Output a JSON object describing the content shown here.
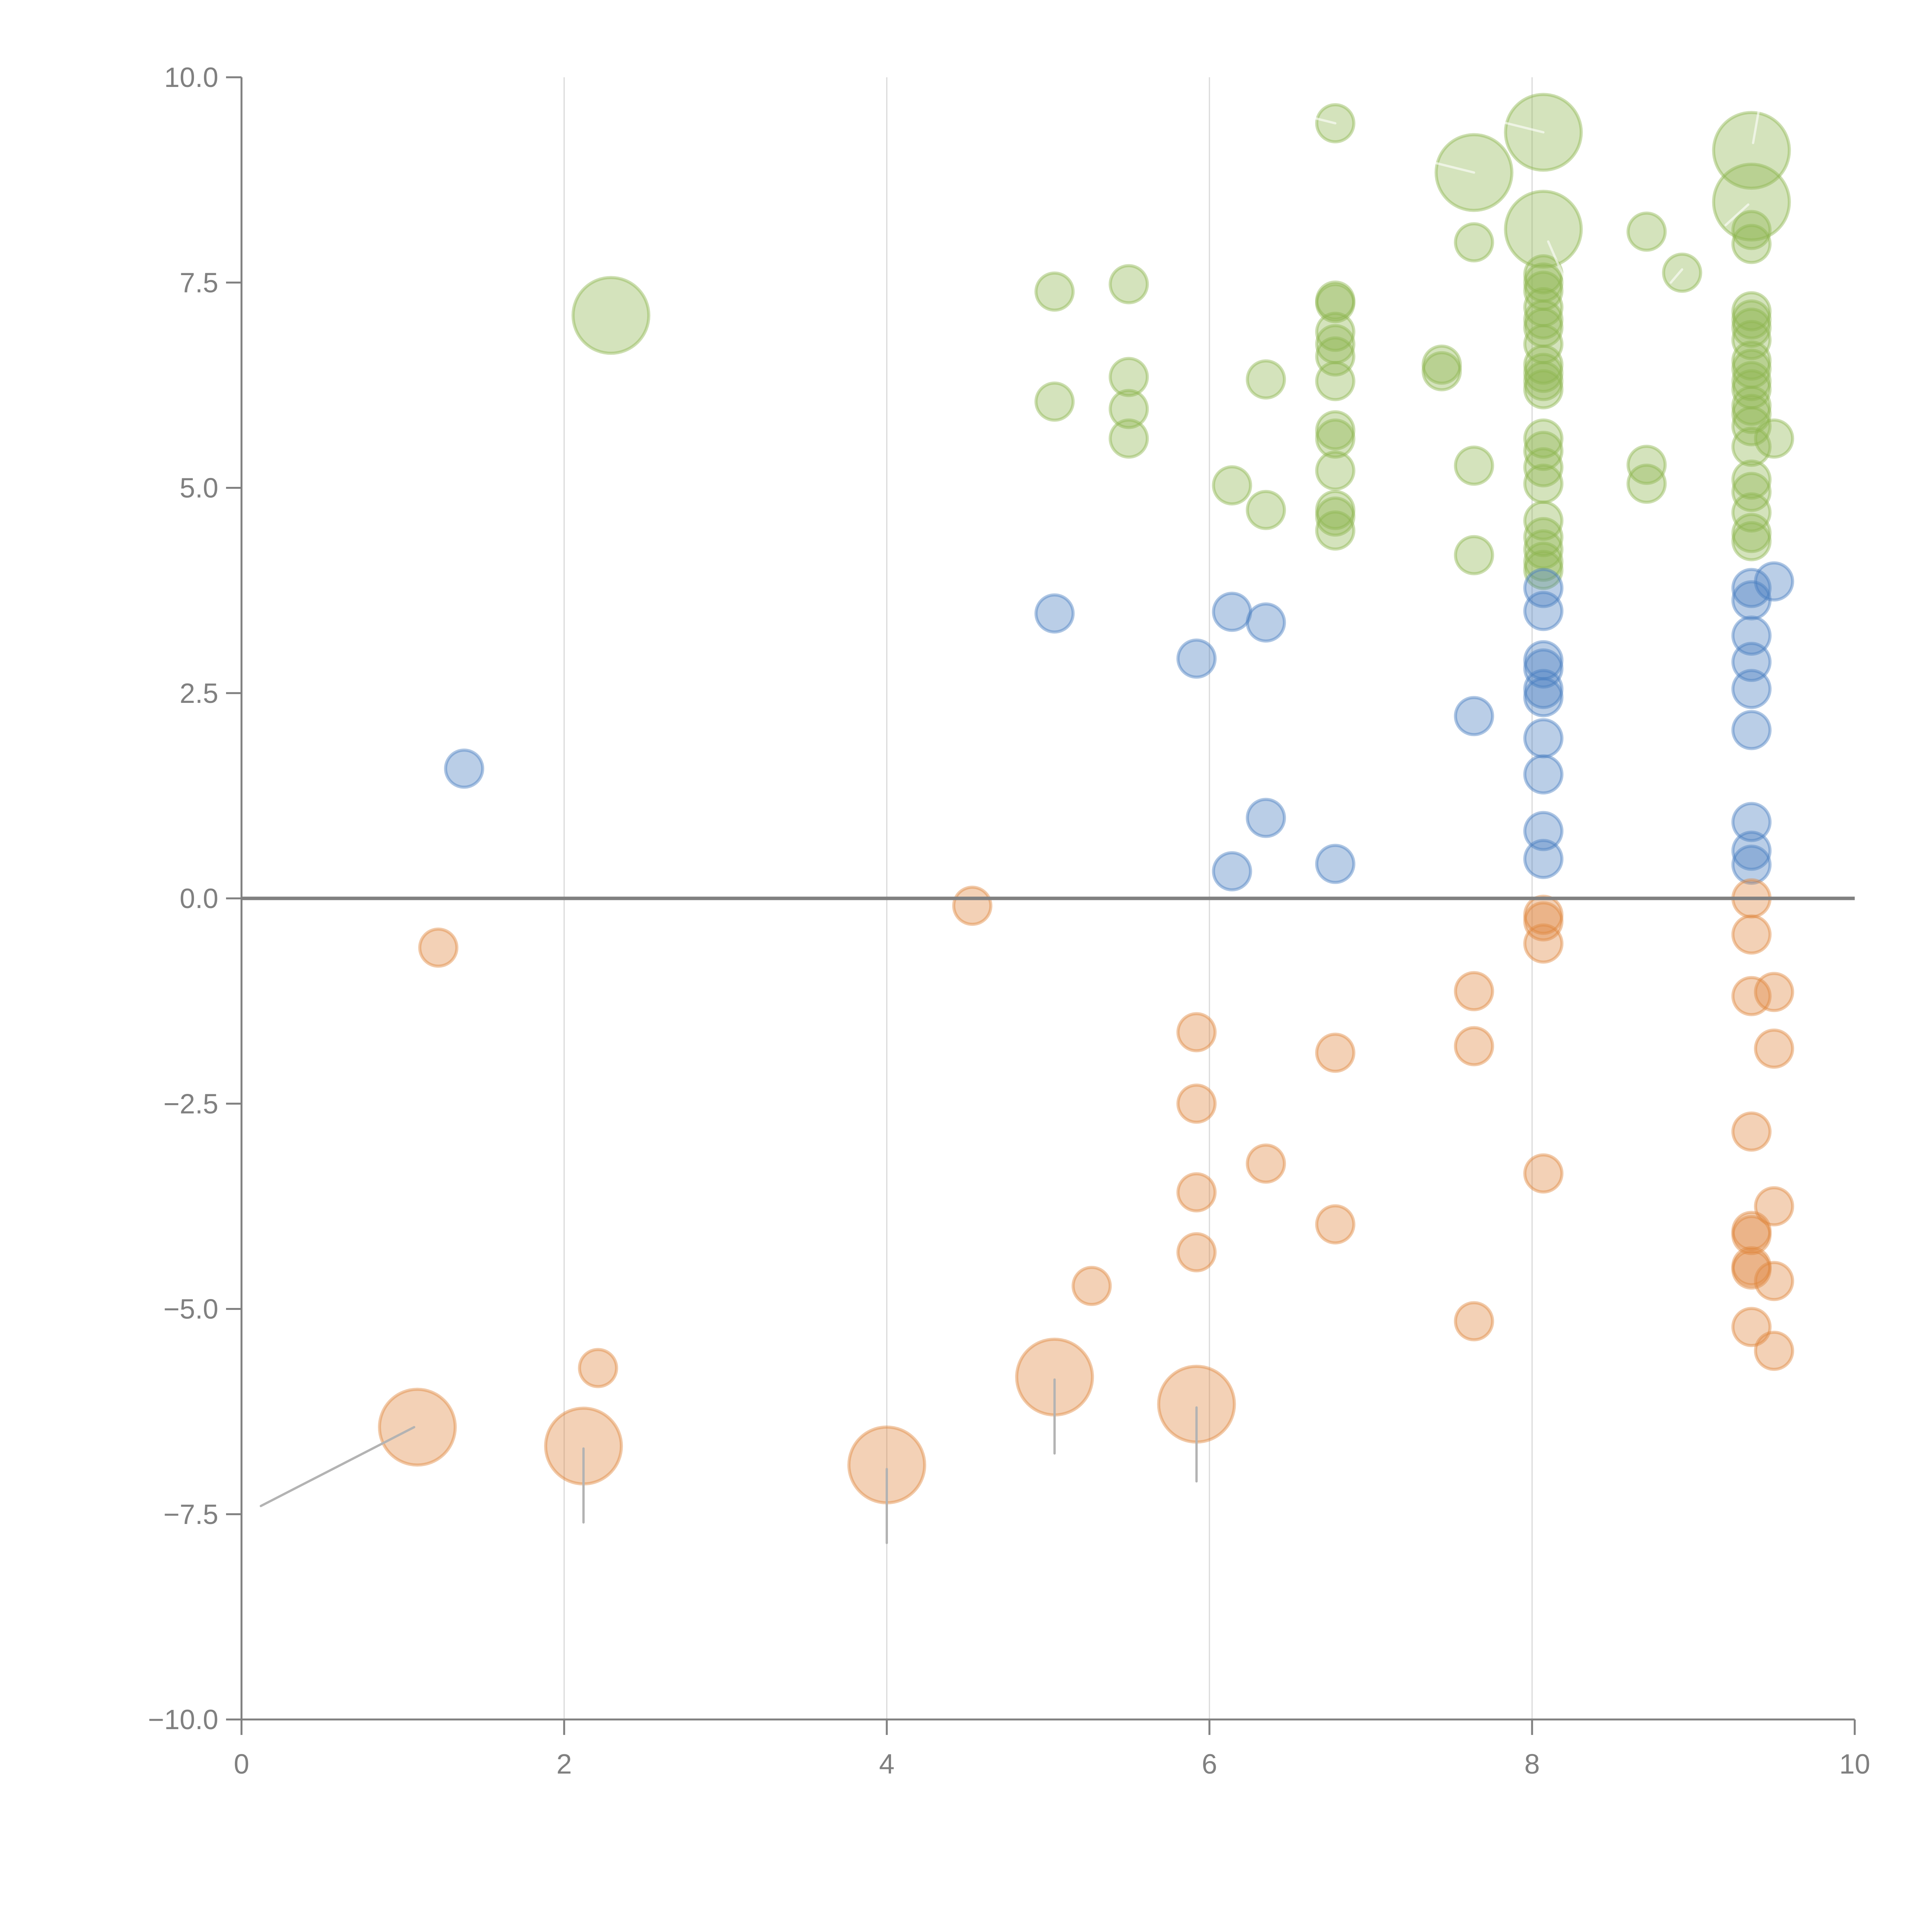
{
  "chart_data": {
    "type": "scatter",
    "subtype": "bubble",
    "title": "",
    "xlabel": "",
    "ylabel": "",
    "xlim": [
      0,
      10
    ],
    "ylim": [
      -10,
      10
    ],
    "x_ticks": [
      "0",
      "2",
      "4",
      "6",
      "8",
      "10"
    ],
    "y_ticks": [
      "10.0",
      "7.5",
      "5.0",
      "2.5",
      "0.0",
      "−2.5",
      "−5.0",
      "−7.5",
      "−10.0"
    ],
    "grid": "vertical",
    "legend": "none",
    "colors": {
      "green": "#8fb54f",
      "blue": "#4a7fc1",
      "orange": "#e0873f"
    },
    "series": [
      {
        "name": "green",
        "color": "#8fb54f",
        "points": [
          {
            "x": 2.29,
            "y": 7.1,
            "size": 2
          },
          {
            "x": 5.04,
            "y": 7.39,
            "size": 1
          },
          {
            "x": 5.04,
            "y": 6.05,
            "size": 1
          },
          {
            "x": 5.5,
            "y": 7.48,
            "size": 1
          },
          {
            "x": 5.5,
            "y": 6.35,
            "size": 1
          },
          {
            "x": 5.5,
            "y": 5.96,
            "size": 1
          },
          {
            "x": 5.5,
            "y": 5.6,
            "size": 1
          },
          {
            "x": 6.14,
            "y": 5.03,
            "size": 1
          },
          {
            "x": 6.35,
            "y": 6.32,
            "size": 1
          },
          {
            "x": 6.35,
            "y": 4.73,
            "size": 1
          },
          {
            "x": 6.78,
            "y": 9.44,
            "size": 1
          },
          {
            "x": 6.78,
            "y": 7.28,
            "size": 1
          },
          {
            "x": 6.78,
            "y": 7.25,
            "size": 1
          },
          {
            "x": 6.78,
            "y": 6.9,
            "size": 1
          },
          {
            "x": 6.78,
            "y": 6.75,
            "size": 1
          },
          {
            "x": 6.78,
            "y": 6.6,
            "size": 1
          },
          {
            "x": 6.78,
            "y": 6.3,
            "size": 1
          },
          {
            "x": 6.78,
            "y": 5.7,
            "size": 1
          },
          {
            "x": 6.78,
            "y": 5.6,
            "size": 1
          },
          {
            "x": 6.78,
            "y": 5.21,
            "size": 1
          },
          {
            "x": 6.78,
            "y": 4.73,
            "size": 1
          },
          {
            "x": 6.78,
            "y": 4.65,
            "size": 1
          },
          {
            "x": 6.78,
            "y": 4.48,
            "size": 1
          },
          {
            "x": 7.44,
            "y": 6.5,
            "size": 1
          },
          {
            "x": 7.44,
            "y": 6.42,
            "size": 1
          },
          {
            "x": 7.64,
            "y": 8.84,
            "size": 2
          },
          {
            "x": 7.64,
            "y": 7.99,
            "size": 1
          },
          {
            "x": 7.64,
            "y": 5.27,
            "size": 1
          },
          {
            "x": 7.64,
            "y": 4.18,
            "size": 1
          },
          {
            "x": 8.07,
            "y": 9.33,
            "size": 2
          },
          {
            "x": 8.07,
            "y": 8.15,
            "size": 2
          },
          {
            "x": 8.07,
            "y": 7.6,
            "size": 1
          },
          {
            "x": 8.07,
            "y": 7.5,
            "size": 1
          },
          {
            "x": 8.07,
            "y": 7.4,
            "size": 1
          },
          {
            "x": 8.07,
            "y": 7.2,
            "size": 1
          },
          {
            "x": 8.07,
            "y": 7.05,
            "size": 1
          },
          {
            "x": 8.07,
            "y": 6.95,
            "size": 1
          },
          {
            "x": 8.07,
            "y": 6.75,
            "size": 1
          },
          {
            "x": 8.07,
            "y": 6.5,
            "size": 1
          },
          {
            "x": 8.07,
            "y": 6.4,
            "size": 1
          },
          {
            "x": 8.07,
            "y": 6.3,
            "size": 1
          },
          {
            "x": 8.07,
            "y": 6.2,
            "size": 1
          },
          {
            "x": 8.07,
            "y": 5.6,
            "size": 1
          },
          {
            "x": 8.07,
            "y": 5.45,
            "size": 1
          },
          {
            "x": 8.07,
            "y": 5.25,
            "size": 1
          },
          {
            "x": 8.07,
            "y": 5.05,
            "size": 1
          },
          {
            "x": 8.07,
            "y": 4.6,
            "size": 1
          },
          {
            "x": 8.07,
            "y": 4.4,
            "size": 1
          },
          {
            "x": 8.07,
            "y": 4.25,
            "size": 1
          },
          {
            "x": 8.07,
            "y": 4.1,
            "size": 1
          },
          {
            "x": 8.07,
            "y": 4.0,
            "size": 1
          },
          {
            "x": 8.71,
            "y": 8.12,
            "size": 1
          },
          {
            "x": 8.93,
            "y": 7.62,
            "size": 1
          },
          {
            "x": 8.71,
            "y": 5.28,
            "size": 1
          },
          {
            "x": 8.71,
            "y": 5.05,
            "size": 1
          },
          {
            "x": 9.36,
            "y": 9.11,
            "size": 2
          },
          {
            "x": 9.36,
            "y": 8.48,
            "size": 2
          },
          {
            "x": 9.36,
            "y": 8.14,
            "size": 1
          },
          {
            "x": 9.36,
            "y": 7.97,
            "size": 1
          },
          {
            "x": 9.36,
            "y": 7.15,
            "size": 1
          },
          {
            "x": 9.36,
            "y": 7.05,
            "size": 1
          },
          {
            "x": 9.36,
            "y": 6.95,
            "size": 1
          },
          {
            "x": 9.36,
            "y": 6.8,
            "size": 1
          },
          {
            "x": 9.36,
            "y": 6.55,
            "size": 1
          },
          {
            "x": 9.36,
            "y": 6.45,
            "size": 1
          },
          {
            "x": 9.36,
            "y": 6.3,
            "size": 1
          },
          {
            "x": 9.36,
            "y": 6.2,
            "size": 1
          },
          {
            "x": 9.36,
            "y": 6.0,
            "size": 1
          },
          {
            "x": 9.36,
            "y": 5.9,
            "size": 1
          },
          {
            "x": 9.36,
            "y": 5.75,
            "size": 1
          },
          {
            "x": 9.36,
            "y": 5.5,
            "size": 1
          },
          {
            "x": 9.5,
            "y": 5.6,
            "size": 1
          },
          {
            "x": 9.36,
            "y": 5.1,
            "size": 1
          },
          {
            "x": 9.36,
            "y": 4.95,
            "size": 1
          },
          {
            "x": 9.36,
            "y": 4.7,
            "size": 1
          },
          {
            "x": 9.36,
            "y": 4.45,
            "size": 1
          },
          {
            "x": 9.36,
            "y": 4.35,
            "size": 1
          }
        ]
      },
      {
        "name": "blue",
        "color": "#4a7fc1",
        "points": [
          {
            "x": 1.38,
            "y": 1.58,
            "size": 1
          },
          {
            "x": 5.04,
            "y": 3.47,
            "size": 1
          },
          {
            "x": 5.92,
            "y": 2.92,
            "size": 1
          },
          {
            "x": 6.14,
            "y": 3.49,
            "size": 1
          },
          {
            "x": 6.14,
            "y": 0.33,
            "size": 1
          },
          {
            "x": 6.35,
            "y": 3.36,
            "size": 1
          },
          {
            "x": 6.35,
            "y": 0.98,
            "size": 1
          },
          {
            "x": 6.78,
            "y": 0.42,
            "size": 1
          },
          {
            "x": 7.64,
            "y": 2.22,
            "size": 1
          },
          {
            "x": 8.07,
            "y": 3.78,
            "size": 1
          },
          {
            "x": 8.07,
            "y": 3.5,
            "size": 1
          },
          {
            "x": 8.07,
            "y": 2.9,
            "size": 1
          },
          {
            "x": 8.07,
            "y": 2.8,
            "size": 1
          },
          {
            "x": 8.07,
            "y": 2.55,
            "size": 1
          },
          {
            "x": 8.07,
            "y": 2.45,
            "size": 1
          },
          {
            "x": 8.07,
            "y": 1.95,
            "size": 1
          },
          {
            "x": 8.07,
            "y": 1.51,
            "size": 1
          },
          {
            "x": 8.07,
            "y": 0.82,
            "size": 1
          },
          {
            "x": 8.07,
            "y": 0.48,
            "size": 1
          },
          {
            "x": 9.36,
            "y": 3.78,
            "size": 1
          },
          {
            "x": 9.36,
            "y": 3.63,
            "size": 1
          },
          {
            "x": 9.36,
            "y": 3.2,
            "size": 1
          },
          {
            "x": 9.36,
            "y": 2.88,
            "size": 1
          },
          {
            "x": 9.36,
            "y": 2.55,
            "size": 1
          },
          {
            "x": 9.36,
            "y": 2.05,
            "size": 1
          },
          {
            "x": 9.36,
            "y": 0.93,
            "size": 1
          },
          {
            "x": 9.36,
            "y": 0.58,
            "size": 1
          },
          {
            "x": 9.36,
            "y": 0.41,
            "size": 1
          },
          {
            "x": 9.5,
            "y": 3.86,
            "size": 1
          }
        ]
      },
      {
        "name": "orange",
        "color": "#e0873f",
        "points": [
          {
            "x": 1.09,
            "y": -6.44,
            "size": 2
          },
          {
            "x": 1.22,
            "y": -0.6,
            "size": 1
          },
          {
            "x": 2.12,
            "y": -6.67,
            "size": 2
          },
          {
            "x": 2.21,
            "y": -5.72,
            "size": 1
          },
          {
            "x": 4.0,
            "y": -6.9,
            "size": 2
          },
          {
            "x": 4.53,
            "y": -0.09,
            "size": 1
          },
          {
            "x": 5.04,
            "y": -5.83,
            "size": 2
          },
          {
            "x": 5.27,
            "y": -4.72,
            "size": 1
          },
          {
            "x": 5.92,
            "y": -6.16,
            "size": 2
          },
          {
            "x": 5.92,
            "y": -1.63,
            "size": 1
          },
          {
            "x": 5.92,
            "y": -2.5,
            "size": 1
          },
          {
            "x": 5.92,
            "y": -3.58,
            "size": 1
          },
          {
            "x": 5.92,
            "y": -4.31,
            "size": 1
          },
          {
            "x": 6.35,
            "y": -3.23,
            "size": 1
          },
          {
            "x": 6.78,
            "y": -1.88,
            "size": 1
          },
          {
            "x": 6.78,
            "y": -3.97,
            "size": 1
          },
          {
            "x": 7.64,
            "y": -1.13,
            "size": 1
          },
          {
            "x": 7.64,
            "y": -1.8,
            "size": 1
          },
          {
            "x": 7.64,
            "y": -5.15,
            "size": 1
          },
          {
            "x": 8.07,
            "y": -0.2,
            "size": 1
          },
          {
            "x": 8.07,
            "y": -0.28,
            "size": 1
          },
          {
            "x": 8.07,
            "y": -0.55,
            "size": 1
          },
          {
            "x": 8.07,
            "y": -3.35,
            "size": 1
          },
          {
            "x": 9.36,
            "y": 0.0,
            "size": 1
          },
          {
            "x": 9.36,
            "y": -0.44,
            "size": 1
          },
          {
            "x": 9.36,
            "y": -1.19,
            "size": 1
          },
          {
            "x": 9.36,
            "y": -2.84,
            "size": 1
          },
          {
            "x": 9.36,
            "y": -4.05,
            "size": 1
          },
          {
            "x": 9.36,
            "y": -4.1,
            "size": 1
          },
          {
            "x": 9.36,
            "y": -4.48,
            "size": 1
          },
          {
            "x": 9.36,
            "y": -4.52,
            "size": 1
          },
          {
            "x": 9.36,
            "y": -5.22,
            "size": 1
          },
          {
            "x": 9.5,
            "y": -1.14,
            "size": 1
          },
          {
            "x": 9.5,
            "y": -1.83,
            "size": 1
          },
          {
            "x": 9.5,
            "y": -3.75,
            "size": 1
          },
          {
            "x": 9.5,
            "y": -4.66,
            "size": 1
          },
          {
            "x": 9.5,
            "y": -5.51,
            "size": 1
          }
        ]
      }
    ],
    "leader_lines": [
      {
        "from": [
          1.07,
          -6.44
        ],
        "to": [
          0.12,
          -7.4
        ],
        "color": "#b3b3b3"
      },
      {
        "from": [
          2.12,
          -6.7
        ],
        "to": [
          2.12,
          -7.6
        ],
        "color": "#b3b3b3"
      },
      {
        "from": [
          4.0,
          -6.95
        ],
        "to": [
          4.0,
          -7.85
        ],
        "color": "#b3b3b3"
      },
      {
        "from": [
          5.04,
          -5.86
        ],
        "to": [
          5.04,
          -6.76
        ],
        "color": "#b3b3b3"
      },
      {
        "from": [
          5.92,
          -6.2
        ],
        "to": [
          5.92,
          -7.1
        ],
        "color": "#b3b3b3"
      },
      {
        "from": [
          6.78,
          9.44
        ],
        "to": [
          6.41,
          9.62
        ],
        "color": "#ffffff"
      },
      {
        "from": [
          7.64,
          8.84
        ],
        "to": [
          7.27,
          9.02
        ],
        "color": "#ffffff"
      },
      {
        "from": [
          8.07,
          9.33
        ],
        "to": [
          7.7,
          9.51
        ],
        "color": "#ffffff"
      },
      {
        "from": [
          8.1,
          8.0
        ],
        "to": [
          8.2,
          7.55
        ],
        "color": "#ffffff"
      },
      {
        "from": [
          9.37,
          9.2
        ],
        "to": [
          9.41,
          9.65
        ],
        "color": "#ffffff"
      },
      {
        "from": [
          9.34,
          8.45
        ],
        "to": [
          9.2,
          8.2
        ],
        "color": "#ffffff"
      },
      {
        "from": [
          8.93,
          7.66
        ],
        "to": [
          8.86,
          7.5
        ],
        "color": "#ffffff"
      }
    ]
  }
}
